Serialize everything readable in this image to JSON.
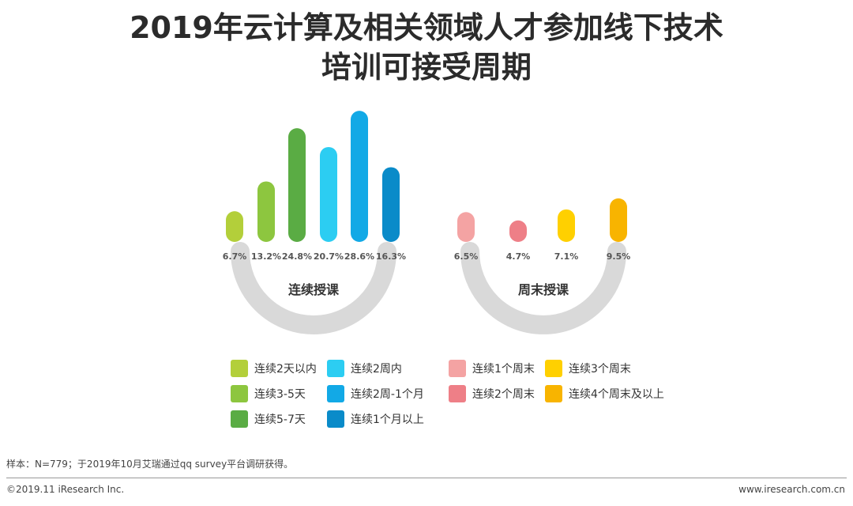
{
  "header": {
    "title_line1": "2019年云计算及相关领域人才参加线下技术",
    "title_line2": "培训可接受周期"
  },
  "chart_data": [
    {
      "type": "bar",
      "title": "连续授课",
      "categories": [
        "连续2天以内",
        "连续3-5天",
        "连续5-7天",
        "连续2周内",
        "连续2周-1个月",
        "连续1个月以上"
      ],
      "values": [
        6.7,
        13.2,
        24.8,
        20.7,
        28.6,
        16.3
      ],
      "value_labels": [
        "6.7%",
        "13.2%",
        "24.8%",
        "20.7%",
        "28.6%",
        "16.3%"
      ],
      "colors": [
        "#b3cf3a",
        "#8dc63f",
        "#5aac44",
        "#2ccdf2",
        "#12a9e6",
        "#0a8bc9"
      ],
      "unit": "%"
    },
    {
      "type": "bar",
      "title": "周末授课",
      "categories": [
        "连续1个周末",
        "连续2个周末",
        "连续3个周末",
        "连续4个周末及以上"
      ],
      "values": [
        6.5,
        4.7,
        7.1,
        9.5
      ],
      "value_labels": [
        "6.5%",
        "4.7%",
        "7.1%",
        "9.5%"
      ],
      "colors": [
        "#f4a3a3",
        "#ee7f87",
        "#ffd000",
        "#f8b400"
      ],
      "unit": "%"
    }
  ],
  "legend": {
    "left": [
      {
        "label": "连续2天以内",
        "color": "#b3cf3a"
      },
      {
        "label": "连续3-5天",
        "color": "#8dc63f"
      },
      {
        "label": "连续5-7天",
        "color": "#5aac44"
      },
      {
        "label": "连续2周内",
        "color": "#2ccdf2"
      },
      {
        "label": "连续2周-1个月",
        "color": "#12a9e6"
      },
      {
        "label": "连续1个月以上",
        "color": "#0a8bc9"
      }
    ],
    "right": [
      {
        "label": "连续1个周末",
        "color": "#f4a3a3"
      },
      {
        "label": "连续2个周末",
        "color": "#ee7f87"
      },
      {
        "label": "连续3个周末",
        "color": "#ffd000"
      },
      {
        "label": "连续4个周末及以上",
        "color": "#f8b400"
      }
    ]
  },
  "arc_color": "#d9d9d9",
  "footer": {
    "sample_note": "样本：N=779；于2019年10月艾瑞通过qq survey平台调研获得。",
    "copyright": "©2019.11 iResearch Inc.",
    "website": "www.iresearch.com.cn"
  }
}
